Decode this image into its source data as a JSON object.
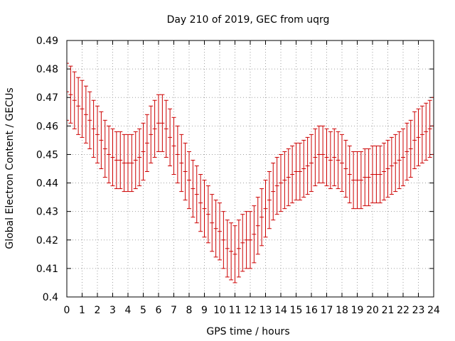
{
  "chart_data": {
    "type": "errorbar",
    "title": "Day 210 of 2019, GEC from uqrg",
    "xlabel": "GPS time / hours",
    "ylabel": "Global Electron Content / GECUs",
    "xlim": [
      0,
      24
    ],
    "ylim": [
      0.4,
      0.49
    ],
    "grid": true,
    "x_ticks": [
      0,
      1,
      2,
      3,
      4,
      5,
      6,
      7,
      8,
      9,
      10,
      11,
      12,
      13,
      14,
      15,
      16,
      17,
      18,
      19,
      20,
      21,
      22,
      23,
      24
    ],
    "y_ticks": [
      0.4,
      0.41,
      0.42,
      0.43,
      0.44,
      0.45,
      0.46,
      0.47,
      0.48,
      0.49
    ],
    "y_tick_labels": [
      "0.4",
      "0.41",
      "0.42",
      "0.43",
      "0.44",
      "0.45",
      "0.46",
      "0.47",
      "0.48",
      "0.49"
    ],
    "series": [
      {
        "name": "GEC",
        "color": "#cc0000",
        "x": [
          0,
          0.25,
          0.5,
          0.75,
          1,
          1.25,
          1.5,
          1.75,
          2,
          2.25,
          2.5,
          2.75,
          3,
          3.25,
          3.5,
          3.75,
          4,
          4.25,
          4.5,
          4.75,
          5,
          5.25,
          5.5,
          5.75,
          6,
          6.25,
          6.5,
          6.75,
          7,
          7.25,
          7.5,
          7.75,
          8,
          8.25,
          8.5,
          8.75,
          9,
          9.25,
          9.5,
          9.75,
          10,
          10.25,
          10.5,
          10.75,
          11,
          11.25,
          11.5,
          11.75,
          12,
          12.25,
          12.5,
          12.75,
          13,
          13.25,
          13.5,
          13.75,
          14,
          14.25,
          14.5,
          14.75,
          15,
          15.25,
          15.5,
          15.75,
          16,
          16.25,
          16.5,
          16.75,
          17,
          17.25,
          17.5,
          17.75,
          18,
          18.25,
          18.5,
          18.75,
          19,
          19.25,
          19.5,
          19.75,
          20,
          20.25,
          20.5,
          20.75,
          21,
          21.25,
          21.5,
          21.75,
          22,
          22.25,
          22.5,
          22.75,
          23,
          23.25,
          23.5,
          23.75,
          24
        ],
        "values": [
          0.472,
          0.471,
          0.469,
          0.467,
          0.466,
          0.464,
          0.462,
          0.459,
          0.457,
          0.455,
          0.452,
          0.45,
          0.449,
          0.448,
          0.448,
          0.447,
          0.447,
          0.447,
          0.448,
          0.449,
          0.451,
          0.454,
          0.457,
          0.459,
          0.461,
          0.461,
          0.459,
          0.456,
          0.453,
          0.45,
          0.447,
          0.444,
          0.441,
          0.438,
          0.436,
          0.433,
          0.431,
          0.429,
          0.426,
          0.424,
          0.423,
          0.42,
          0.417,
          0.416,
          0.415,
          0.417,
          0.419,
          0.42,
          0.42,
          0.422,
          0.425,
          0.428,
          0.431,
          0.434,
          0.437,
          0.439,
          0.44,
          0.441,
          0.442,
          0.443,
          0.444,
          0.444,
          0.445,
          0.446,
          0.447,
          0.449,
          0.45,
          0.45,
          0.449,
          0.448,
          0.449,
          0.448,
          0.447,
          0.445,
          0.443,
          0.441,
          0.441,
          0.441,
          0.442,
          0.442,
          0.443,
          0.443,
          0.443,
          0.444,
          0.445,
          0.446,
          0.447,
          0.448,
          0.449,
          0.451,
          0.452,
          0.455,
          0.456,
          0.457,
          0.458,
          0.459,
          0.46
        ],
        "errors": [
          0.01,
          0.01,
          0.01,
          0.01,
          0.01,
          0.01,
          0.01,
          0.01,
          0.01,
          0.01,
          0.01,
          0.01,
          0.01,
          0.01,
          0.01,
          0.01,
          0.01,
          0.01,
          0.01,
          0.01,
          0.01,
          0.01,
          0.01,
          0.01,
          0.01,
          0.01,
          0.01,
          0.01,
          0.01,
          0.01,
          0.01,
          0.01,
          0.01,
          0.01,
          0.01,
          0.01,
          0.01,
          0.01,
          0.01,
          0.01,
          0.01,
          0.01,
          0.01,
          0.01,
          0.01,
          0.01,
          0.01,
          0.01,
          0.01,
          0.01,
          0.01,
          0.01,
          0.01,
          0.01,
          0.01,
          0.01,
          0.01,
          0.01,
          0.01,
          0.01,
          0.01,
          0.01,
          0.01,
          0.01,
          0.01,
          0.01,
          0.01,
          0.01,
          0.01,
          0.01,
          0.01,
          0.01,
          0.01,
          0.01,
          0.01,
          0.01,
          0.01,
          0.01,
          0.01,
          0.01,
          0.01,
          0.01,
          0.01,
          0.01,
          0.01,
          0.01,
          0.01,
          0.01,
          0.01,
          0.01,
          0.01,
          0.01,
          0.01,
          0.01,
          0.01,
          0.01,
          0.01
        ]
      }
    ]
  }
}
